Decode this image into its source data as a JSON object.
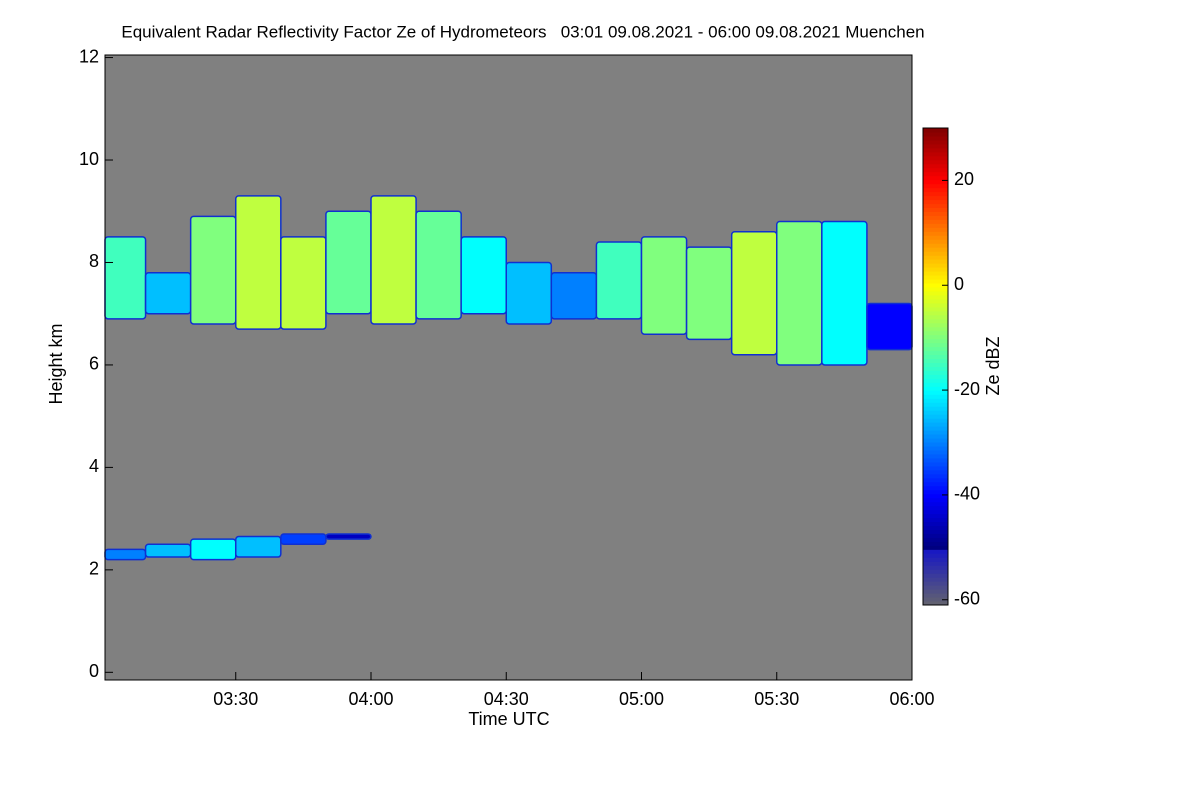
{
  "chart_data": {
    "type": "heatmap",
    "title": "Equivalent Radar Reflectivity Factor Ze of Hydrometeors   03:01 09.08.2021 - 06:00 09.08.2021 Muenchen",
    "x_label": "Time UTC",
    "y_label": "Height km",
    "colorbar_label": "Ze dBZ",
    "xlim": [
      181,
      360
    ],
    "xticks": [
      {
        "value": 210,
        "label": "03:30"
      },
      {
        "value": 240,
        "label": "04:00"
      },
      {
        "value": 270,
        "label": "04:30"
      },
      {
        "value": 300,
        "label": "05:00"
      },
      {
        "value": 330,
        "label": "05:30"
      },
      {
        "value": 360,
        "label": "06:00"
      }
    ],
    "ylim": [
      -0.15,
      12.05
    ],
    "yticks": [
      0,
      2,
      4,
      6,
      8,
      10,
      12
    ],
    "clim": [
      -61,
      30
    ],
    "cticks": [
      -60,
      -40,
      -20,
      0,
      20
    ],
    "background": "#808080",
    "cells": [
      {
        "x": [
          181,
          190
        ],
        "y": [
          6.9,
          8.5
        ],
        "value": -15
      },
      {
        "x": [
          190,
          200
        ],
        "y": [
          7.0,
          7.8
        ],
        "value": -25
      },
      {
        "x": [
          200,
          210
        ],
        "y": [
          6.8,
          8.9
        ],
        "value": -10
      },
      {
        "x": [
          210,
          220
        ],
        "y": [
          6.7,
          9.3
        ],
        "value": -5
      },
      {
        "x": [
          220,
          230
        ],
        "y": [
          6.7,
          8.5
        ],
        "value": -5
      },
      {
        "x": [
          230,
          240
        ],
        "y": [
          7.0,
          9.0
        ],
        "value": -12
      },
      {
        "x": [
          240,
          250
        ],
        "y": [
          6.8,
          9.3
        ],
        "value": -5
      },
      {
        "x": [
          250,
          260
        ],
        "y": [
          6.9,
          9.0
        ],
        "value": -12
      },
      {
        "x": [
          260,
          270
        ],
        "y": [
          7.0,
          8.5
        ],
        "value": -20
      },
      {
        "x": [
          270,
          280
        ],
        "y": [
          6.8,
          8.0
        ],
        "value": -25
      },
      {
        "x": [
          280,
          290
        ],
        "y": [
          6.9,
          7.8
        ],
        "value": -30
      },
      {
        "x": [
          290,
          300
        ],
        "y": [
          6.9,
          8.4
        ],
        "value": -15
      },
      {
        "x": [
          300,
          310
        ],
        "y": [
          6.6,
          8.5
        ],
        "value": -10
      },
      {
        "x": [
          310,
          320
        ],
        "y": [
          6.5,
          8.3
        ],
        "value": -10
      },
      {
        "x": [
          320,
          330
        ],
        "y": [
          6.2,
          8.6
        ],
        "value": -5
      },
      {
        "x": [
          330,
          340
        ],
        "y": [
          6.0,
          8.8
        ],
        "value": -10
      },
      {
        "x": [
          340,
          350
        ],
        "y": [
          6.0,
          8.8
        ],
        "value": -20
      },
      {
        "x": [
          350,
          360
        ],
        "y": [
          6.3,
          7.2
        ],
        "value": -40
      },
      {
        "x": [
          181,
          190
        ],
        "y": [
          2.2,
          2.4
        ],
        "value": -30
      },
      {
        "x": [
          190,
          200
        ],
        "y": [
          2.25,
          2.5
        ],
        "value": -25
      },
      {
        "x": [
          200,
          210
        ],
        "y": [
          2.2,
          2.6
        ],
        "value": -20
      },
      {
        "x": [
          210,
          220
        ],
        "y": [
          2.25,
          2.65
        ],
        "value": -25
      },
      {
        "x": [
          220,
          230
        ],
        "y": [
          2.5,
          2.7
        ],
        "value": -35
      },
      {
        "x": [
          230,
          240
        ],
        "y": [
          2.6,
          2.7
        ],
        "value": -45
      }
    ]
  }
}
